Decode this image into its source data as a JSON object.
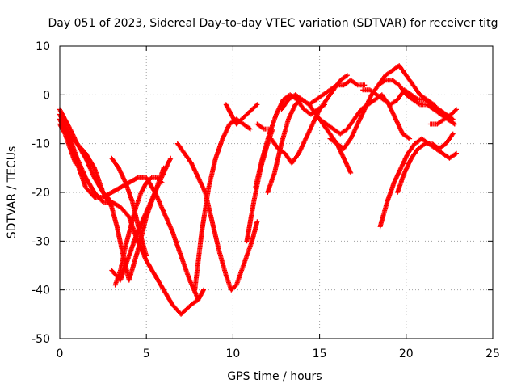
{
  "chart_data": {
    "type": "scatter",
    "title": "Day 051 of 2023, Sidereal Day-to-day VTEC variation (SDTVAR) for receiver titg",
    "xlabel": "GPS time / hours",
    "ylabel": "SDTVAR / TECUs",
    "xlim": [
      0,
      25
    ],
    "ylim": [
      -50,
      10
    ],
    "xticks": [
      0,
      5,
      10,
      15,
      20,
      25
    ],
    "yticks": [
      -50,
      -40,
      -30,
      -20,
      -10,
      0,
      10
    ],
    "xtick_labels": [
      "0",
      "5",
      "10",
      "15",
      "20",
      "25"
    ],
    "ytick_labels": [
      "-50",
      "-40",
      "-30",
      "-20",
      "-10",
      "0",
      "10"
    ],
    "grid": true,
    "marker": "+",
    "color": "#ff0000",
    "series": [
      {
        "x": [
          0,
          0.5,
          1,
          1.5,
          2,
          2.5,
          3,
          3.5,
          4,
          4.5,
          5,
          5.5,
          6,
          6.5,
          7,
          7.3,
          7.6,
          8,
          8.3
        ],
        "y": [
          -5,
          -8,
          -10,
          -13,
          -17,
          -20,
          -22,
          -23,
          -25,
          -30,
          -34,
          -37,
          -40,
          -43,
          -45,
          -44,
          -43,
          -42,
          -40
        ]
      },
      {
        "x": [
          0,
          0.3,
          0.6,
          1,
          1.5,
          2,
          2.5,
          3,
          3.3,
          3.6,
          4,
          4.5,
          5,
          5.5,
          6
        ],
        "y": [
          -3,
          -5,
          -7,
          -10,
          -12,
          -15,
          -20,
          -23,
          -27,
          -32,
          -38,
          -32,
          -25,
          -20,
          -15
        ]
      },
      {
        "x": [
          0,
          0.3,
          0.6,
          0.9
        ],
        "y": [
          -6,
          -8,
          -11,
          -14
        ]
      },
      {
        "x": [
          0,
          0.5,
          1,
          1.5,
          2,
          2.5,
          3,
          3.5,
          4,
          4.5,
          5,
          5.5,
          6,
          6.5,
          7,
          7.5,
          8
        ],
        "y": [
          -5,
          -9,
          -14,
          -19,
          -21,
          -21,
          -20,
          -19,
          -18,
          -17,
          -17,
          -20,
          -24,
          -28,
          -33,
          -38,
          -42
        ]
      },
      {
        "x": [
          0,
          0.5,
          1,
          1.5,
          2,
          2.5,
          3
        ],
        "y": [
          -4,
          -8,
          -13,
          -17,
          -20,
          -22,
          -22
        ]
      },
      {
        "x": [
          3,
          3.5,
          4,
          4.5,
          5,
          5.5,
          6,
          6.4
        ],
        "y": [
          -36,
          -38,
          -33,
          -28,
          -24,
          -20,
          -16,
          -13
        ]
      },
      {
        "x": [
          3.2,
          3.5,
          3.8,
          4.1,
          4.4,
          4.7,
          5,
          5.3,
          5.6,
          5.9
        ],
        "y": [
          -39,
          -36,
          -31,
          -27,
          -23,
          -20,
          -18,
          -17,
          -17,
          -18
        ]
      },
      {
        "x": [
          3,
          3.4,
          3.8,
          4.2,
          4.6,
          5
        ],
        "y": [
          -13,
          -15,
          -18,
          -22,
          -28,
          -33
        ]
      },
      {
        "x": [
          6.8,
          7.2,
          7.6,
          8,
          8.4,
          8.8,
          9.2,
          9.6,
          9.9,
          10.2,
          10.5,
          10.8,
          11.1,
          11.4
        ],
        "y": [
          -10,
          -12,
          -14,
          -17,
          -20,
          -26,
          -32,
          -37,
          -40,
          -39,
          -36,
          -33,
          -30,
          -26
        ]
      },
      {
        "x": [
          7.8,
          8.2,
          8.6,
          9,
          9.4,
          9.8,
          10.2,
          10.6,
          11
        ],
        "y": [
          -40,
          -28,
          -19,
          -13,
          -9,
          -6,
          -5,
          -6,
          -7
        ]
      },
      {
        "x": [
          9.6,
          9.9,
          10.2,
          10.5,
          10.8,
          11.1,
          11.4
        ],
        "y": [
          -2,
          -4,
          -6,
          -5,
          -4,
          -3,
          -2
        ]
      },
      {
        "x": [
          10.8,
          11.2,
          11.6,
          12,
          12.3
        ],
        "y": [
          -30,
          -22,
          -15,
          -10,
          -7
        ]
      },
      {
        "x": [
          11.3,
          11.7,
          12.1,
          12.5,
          12.9,
          13.3,
          13.7,
          14.1,
          14.5,
          14.9,
          15.3
        ],
        "y": [
          -19,
          -13,
          -8,
          -4,
          -1,
          0,
          -1,
          -3,
          -4,
          -3,
          -2
        ]
      },
      {
        "x": [
          11.4,
          11.8,
          12.2
        ],
        "y": [
          -6,
          -7,
          -7
        ]
      },
      {
        "x": [
          12,
          12.4,
          12.8,
          13.2,
          13.6,
          14,
          14.4,
          14.8,
          15.2,
          15.6,
          16,
          16.4,
          16.8
        ],
        "y": [
          -20,
          -16,
          -10,
          -5,
          -2,
          -1,
          -2,
          -4,
          -6,
          -8,
          -10,
          -13,
          -16
        ]
      },
      {
        "x": [
          12.2,
          12.6,
          13,
          13.4,
          13.8,
          14.2,
          14.6,
          15,
          15.4,
          15.8,
          16.2,
          16.6
        ],
        "y": [
          -9,
          -11,
          -12,
          -14,
          -12,
          -9,
          -6,
          -3,
          -1,
          1,
          3,
          4
        ]
      },
      {
        "x": [
          12.8,
          13.2,
          13.6,
          14,
          14.4,
          14.8,
          15.2,
          15.6,
          16,
          16.4,
          16.8,
          17.2,
          17.6
        ],
        "y": [
          -3,
          -1,
          0,
          -1,
          -2,
          -1,
          0,
          1,
          2,
          2,
          3,
          2,
          2
        ]
      },
      {
        "x": [
          15,
          15.4,
          15.8,
          16.2,
          16.6,
          17,
          17.4,
          17.8,
          18.2,
          18.6,
          19,
          19.4,
          19.8,
          20.2
        ],
        "y": [
          -5,
          -6,
          -7,
          -8,
          -7,
          -5,
          -3,
          -2,
          -1,
          0,
          -2,
          -5,
          -8,
          -9
        ]
      },
      {
        "x": [
          15.6,
          16,
          16.4,
          16.8,
          17.2,
          17.6,
          18,
          18.4,
          18.8,
          19.2,
          19.6,
          20,
          20.4,
          20.8,
          21.2,
          21.6,
          22,
          22.4,
          22.8
        ],
        "y": [
          -9,
          -10,
          -11,
          -9,
          -6,
          -3,
          0,
          2,
          3,
          3,
          2,
          0,
          -1,
          -2,
          -2,
          -3,
          -4,
          -5,
          -6
        ]
      },
      {
        "x": [
          17.5,
          17.9,
          18.3,
          18.7,
          19.1,
          19.5,
          19.9,
          20.3,
          20.7,
          21.1,
          21.5,
          21.9,
          22.3,
          22.7
        ],
        "y": [
          1,
          1,
          0,
          -1,
          -2,
          -1,
          1,
          0,
          -1,
          -1,
          -2,
          -3,
          -4,
          -5
        ]
      },
      {
        "x": [
          18.4,
          18.8,
          19.2,
          19.6,
          20,
          20.4,
          20.8,
          21.2,
          21.6,
          22,
          22.4,
          22.8
        ],
        "y": [
          2,
          4,
          5,
          6,
          4,
          2,
          0,
          -1,
          -2,
          -4,
          -5,
          -6
        ]
      },
      {
        "x": [
          18.5,
          18.9,
          19.3,
          19.7,
          20.1,
          20.5,
          20.9,
          21.3,
          21.7,
          22.1,
          22.5,
          22.9
        ],
        "y": [
          -27,
          -22,
          -18,
          -15,
          -12,
          -10,
          -9,
          -10,
          -11,
          -12,
          -13,
          -12
        ]
      },
      {
        "x": [
          19.5,
          19.9,
          20.3,
          20.7,
          21.1,
          21.5,
          21.9,
          22.3,
          22.7
        ],
        "y": [
          -20,
          -16,
          -13,
          -11,
          -10,
          -10,
          -11,
          -10,
          -8
        ]
      },
      {
        "x": [
          21.4,
          21.8,
          22.2,
          22.6,
          22.9
        ],
        "y": [
          -6,
          -6,
          -5,
          -4,
          -3
        ]
      }
    ]
  }
}
